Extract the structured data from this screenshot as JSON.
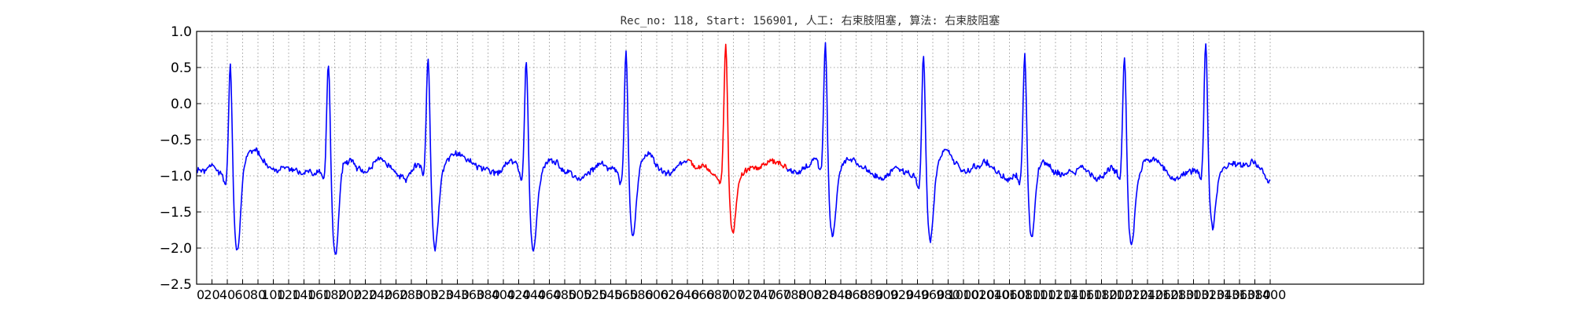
{
  "chart_data": {
    "type": "line",
    "title": "Rec_no: 118, Start: 156901, 人工: 右束肢阻塞, 算法: 右束肢阻塞",
    "xlabel": "",
    "ylabel": "",
    "ylim": [
      -2.5,
      1.0
    ],
    "xlim": [
      0,
      1600
    ],
    "y_ticks": [
      1.0,
      0.5,
      0.0,
      -0.5,
      -1.0,
      -1.5,
      -2.0,
      -2.5
    ],
    "y_tick_labels": [
      "1.0",
      "0.5",
      "0.0",
      "−0.5",
      "−1.0",
      "−1.5",
      "−2.0",
      "−2.5"
    ],
    "x_ticks": [
      0,
      20,
      40,
      60,
      80,
      100,
      120,
      140,
      160,
      180,
      200,
      220,
      240,
      260,
      280,
      300,
      320,
      340,
      360,
      380,
      400,
      420,
      440,
      460,
      480,
      500,
      520,
      540,
      560,
      580,
      600,
      620,
      640,
      660,
      680,
      700,
      720,
      740,
      760,
      780,
      800,
      820,
      840,
      860,
      880,
      900,
      920,
      940,
      960,
      980,
      1000,
      1020,
      1040,
      1060,
      1080,
      1100,
      1120,
      1140,
      1160,
      1180,
      1200,
      1220,
      1240,
      1260,
      1280,
      1300,
      1320,
      1340,
      1360,
      1380,
      1400
    ],
    "x_tick_labels": [
      "0",
      "20",
      "40",
      "60",
      "80",
      "100",
      "120",
      "140",
      "160",
      "180",
      "200",
      "220",
      "240",
      "260",
      "280",
      "300",
      "320",
      "340",
      "360",
      "380",
      "400",
      "420",
      "440",
      "460",
      "480",
      "500",
      "520",
      "540",
      "560",
      "580",
      "600",
      "620",
      "640",
      "660",
      "680",
      "700",
      "720",
      "740",
      "760",
      "780",
      "800",
      "820",
      "840",
      "860",
      "880",
      "900",
      "920",
      "940",
      "960",
      "980",
      "1000",
      "1020",
      "1040",
      "1060",
      "1080",
      "1100",
      "1120",
      "1140",
      "1160",
      "1180",
      "1200",
      "1220",
      "1240",
      "1260",
      "1280",
      "1300",
      "1320",
      "1340",
      "1360",
      "1380",
      "1400"
    ],
    "grid": true,
    "baseline": -0.9,
    "beats": [
      {
        "x": 44,
        "peak": 0.43,
        "trough": -2.08
      },
      {
        "x": 172,
        "peak": 0.38,
        "trough": -2.18
      },
      {
        "x": 302,
        "peak": 0.45,
        "trough": -2.03
      },
      {
        "x": 430,
        "peak": 0.52,
        "trough": -1.93
      },
      {
        "x": 560,
        "peak": 0.58,
        "trough": -1.85
      },
      {
        "x": 690,
        "peak": 0.7,
        "trough": -1.83
      },
      {
        "x": 820,
        "peak": 0.63,
        "trough": -1.78
      },
      {
        "x": 948,
        "peak": 0.61,
        "trough": -1.83
      },
      {
        "x": 1080,
        "peak": 0.52,
        "trough": -1.98
      },
      {
        "x": 1210,
        "peak": 0.51,
        "trough": -1.93
      },
      {
        "x": 1316,
        "peak": 0.66,
        "trough": -1.72
      }
    ],
    "series": [
      {
        "segment": [
          0,
          640
        ],
        "color": "#0000ff"
      },
      {
        "segment": [
          640,
          770
        ],
        "color": "#ff0000"
      },
      {
        "segment": [
          770,
          1400
        ],
        "color": "#0000ff"
      }
    ]
  }
}
